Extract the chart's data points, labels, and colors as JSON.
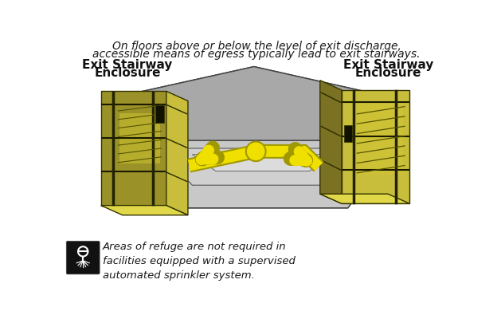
{
  "title_line1": "On floors above or below the level of exit discharge,",
  "title_line2": "accessible means of egress typically lead to exit stairways.",
  "left_label_line1": "Exit Stairway",
  "left_label_line2": "Enclosure",
  "right_label_line1": "Exit Stairway",
  "right_label_line2": "Enclosure",
  "note_text": "Areas of refuge are not required in\nfacilities equipped with a supervised\nautomated sprinkler system.",
  "bg_color": "#ffffff",
  "floor_outer": "#b8b8b8",
  "floor_mid": "#cccccc",
  "floor_inner": "#d8d8d8",
  "floor_edge": "#444444",
  "bldg_front_left": "#8a8030",
  "bldg_side_left": "#b0a840",
  "bldg_top_left": "#d4cc50",
  "bldg_front_right": "#8a8030",
  "bldg_side_right": "#b0a840",
  "bldg_top_right": "#d4cc50",
  "yellow_path": "#f0e000",
  "yellow_dark": "#a09800",
  "wall_dark": "#1a1a00",
  "stair_color": "#c8b820",
  "floor_line": "#555533"
}
